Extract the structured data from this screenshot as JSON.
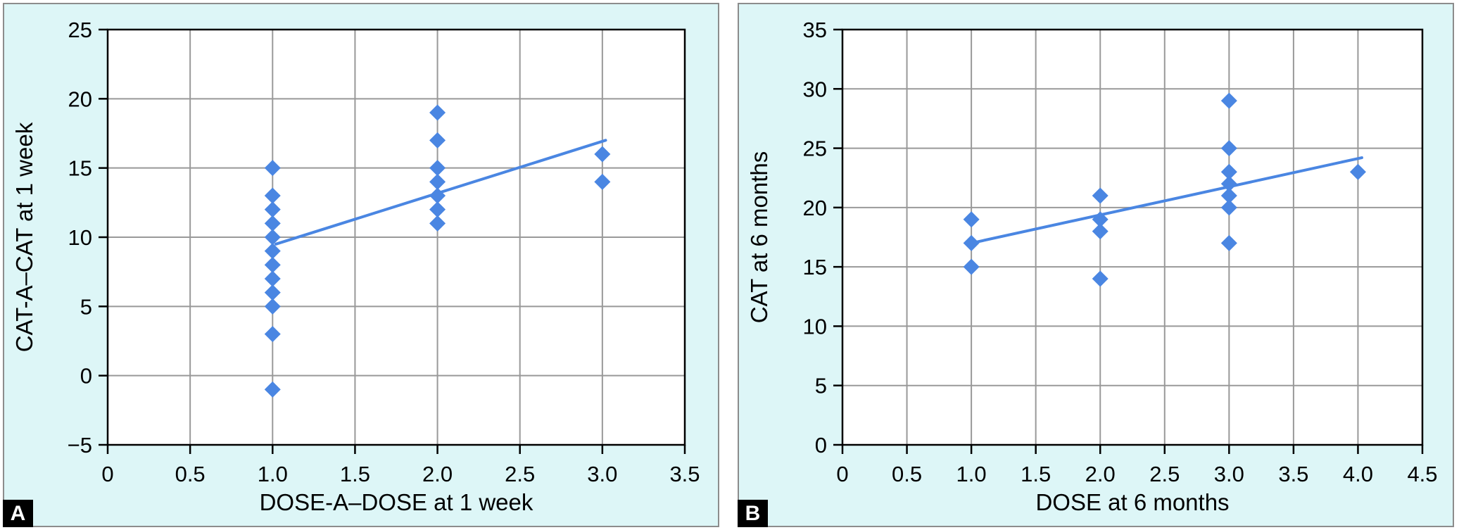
{
  "colors": {
    "page_background": "#ffffff",
    "panel_background": "#ddf6f7",
    "panel_border": "#8c8c8c",
    "plot_background": "#ffffff",
    "grid": "#999999",
    "frame": "#000000",
    "marker": "#4a86e2",
    "trendline": "#4a86e2",
    "text": "#000000",
    "badge_background": "#000000",
    "badge_text": "#ffffff"
  },
  "chart_data": [
    {
      "type": "scatter",
      "badge": "A",
      "title": "",
      "xlabel": "DOSE-A–DOSE at 1 week",
      "ylabel": "CAT-A–CAT at 1 week",
      "xlim": [
        0,
        3.5
      ],
      "ylim": [
        -5,
        25
      ],
      "grid": true,
      "legend_position": "none",
      "xtick_values": [
        0,
        0.5,
        1.0,
        1.5,
        2.0,
        2.5,
        3.0,
        3.5
      ],
      "xtick_labels": [
        "0",
        "0.5",
        "1.0",
        "1.5",
        "2.0",
        "2.5",
        "3.0",
        "3.5"
      ],
      "ytick_values": [
        -5,
        0,
        5,
        10,
        15,
        20,
        25
      ],
      "ytick_labels": [
        "−5",
        "0",
        "5",
        "10",
        "15",
        "20",
        "25"
      ],
      "points": [
        {
          "x": 1,
          "y": [
            15,
            13,
            12,
            11,
            10,
            9,
            8,
            7,
            6,
            5,
            3,
            -1
          ]
        },
        {
          "x": 2,
          "y": [
            19,
            17,
            15,
            14,
            13,
            12,
            11
          ]
        },
        {
          "x": 3,
          "y": [
            16,
            14
          ]
        }
      ],
      "trendline": {
        "x1": 1.02,
        "y1": 9.5,
        "x2": 3.02,
        "y2": 17.0
      }
    },
    {
      "type": "scatter",
      "badge": "B",
      "title": "",
      "xlabel": "DOSE at 6 months",
      "ylabel": "CAT at 6 months",
      "xlim": [
        0,
        4.5
      ],
      "ylim": [
        0,
        35
      ],
      "grid": true,
      "legend_position": "none",
      "xtick_values": [
        0,
        0.5,
        1.0,
        1.5,
        2.0,
        2.5,
        3.0,
        3.5,
        4.0,
        4.5
      ],
      "xtick_labels": [
        "0",
        "0.5",
        "1.0",
        "1.5",
        "2.0",
        "2.5",
        "3.0",
        "3.5",
        "4.0",
        "4.5"
      ],
      "ytick_values": [
        0,
        5,
        10,
        15,
        20,
        25,
        30,
        35
      ],
      "ytick_labels": [
        "0",
        "5",
        "10",
        "15",
        "20",
        "25",
        "30",
        "35"
      ],
      "points": [
        {
          "x": 1,
          "y": [
            19,
            17,
            15
          ]
        },
        {
          "x": 2,
          "y": [
            21,
            19,
            18,
            14
          ]
        },
        {
          "x": 3,
          "y": [
            29,
            25,
            23,
            22,
            21,
            20,
            17
          ]
        },
        {
          "x": 4,
          "y": [
            23
          ]
        }
      ],
      "trendline": {
        "x1": 1.0,
        "y1": 17.0,
        "x2": 4.03,
        "y2": 24.2
      }
    }
  ]
}
